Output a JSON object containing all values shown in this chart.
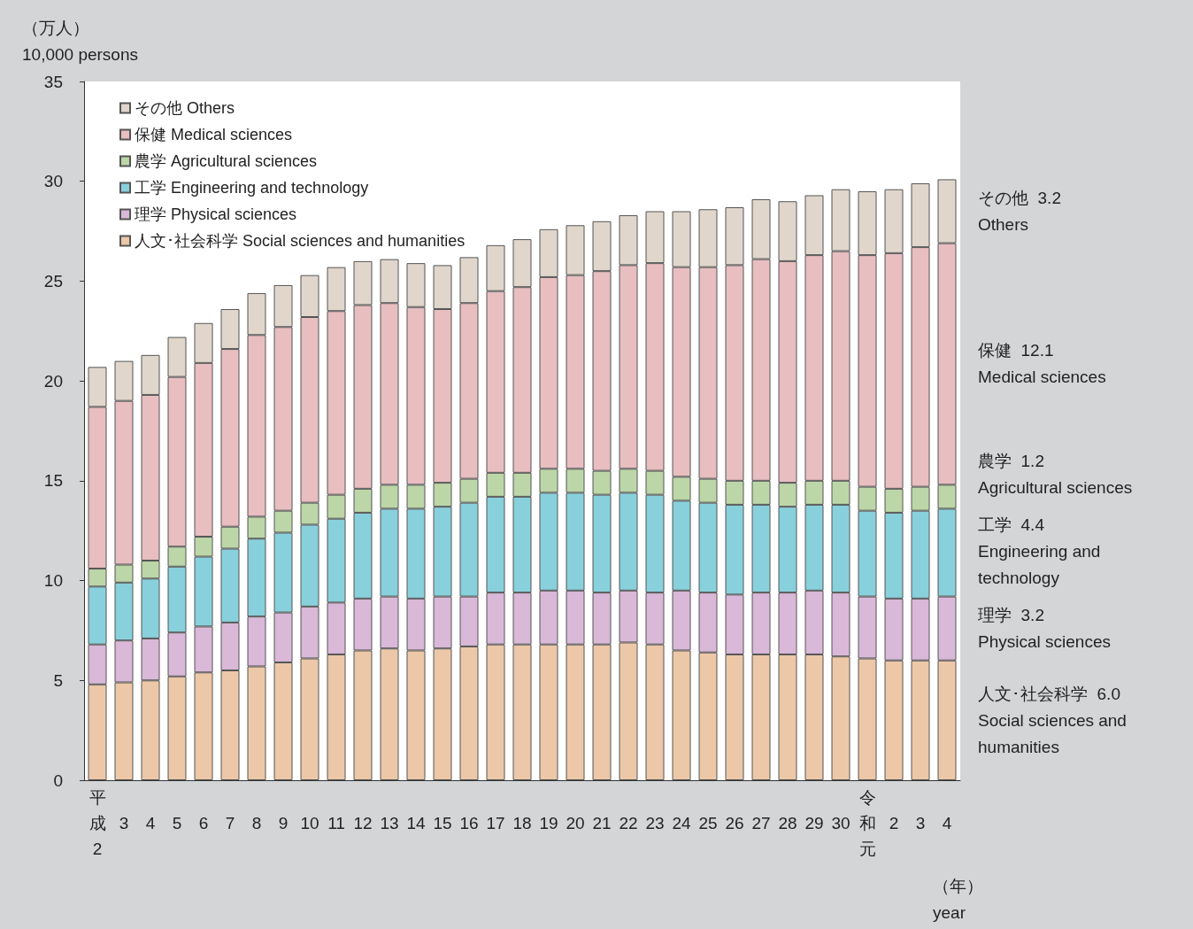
{
  "chart_data": {
    "type": "bar",
    "stacked": true,
    "ylabel": "（万人）\n10,000 persons",
    "xlabel": "（年）\nyear",
    "categories": [
      "平成2",
      "3",
      "4",
      "5",
      "6",
      "7",
      "8",
      "9",
      "10",
      "11",
      "12",
      "13",
      "14",
      "15",
      "16",
      "17",
      "18",
      "19",
      "20",
      "21",
      "22",
      "23",
      "24",
      "25",
      "26",
      "27",
      "28",
      "29",
      "30",
      "令和元",
      "2",
      "3",
      "4"
    ],
    "series": [
      {
        "name": "人文･社会科学 Social sciences and humanities",
        "color": "#ecc8a8",
        "values": [
          4.8,
          4.9,
          5.0,
          5.2,
          5.4,
          5.5,
          5.7,
          5.9,
          6.1,
          6.3,
          6.5,
          6.6,
          6.5,
          6.6,
          6.7,
          6.8,
          6.8,
          6.8,
          6.8,
          6.8,
          6.9,
          6.8,
          6.5,
          6.4,
          6.3,
          6.3,
          6.3,
          6.3,
          6.2,
          6.1,
          6.0,
          6.0,
          6.0
        ]
      },
      {
        "name": "理学 Physical sciences",
        "color": "#d9b8d8",
        "values": [
          2.0,
          2.1,
          2.1,
          2.2,
          2.3,
          2.4,
          2.5,
          2.5,
          2.6,
          2.6,
          2.6,
          2.6,
          2.6,
          2.6,
          2.5,
          2.6,
          2.6,
          2.7,
          2.7,
          2.6,
          2.6,
          2.6,
          3.0,
          3.0,
          3.0,
          3.1,
          3.1,
          3.2,
          3.2,
          3.1,
          3.1,
          3.1,
          3.2
        ]
      },
      {
        "name": "工学 Engineering and technology",
        "color": "#88d0dc",
        "values": [
          2.9,
          2.9,
          3.0,
          3.3,
          3.5,
          3.7,
          3.9,
          4.0,
          4.1,
          4.2,
          4.3,
          4.4,
          4.5,
          4.5,
          4.7,
          4.8,
          4.8,
          4.9,
          4.9,
          4.9,
          4.9,
          4.9,
          4.5,
          4.5,
          4.5,
          4.4,
          4.3,
          4.3,
          4.4,
          4.3,
          4.3,
          4.4,
          4.4
        ]
      },
      {
        "name": "農学 Agricultural sciences",
        "color": "#bcd6a8",
        "values": [
          0.9,
          0.9,
          0.9,
          1.0,
          1.0,
          1.1,
          1.1,
          1.1,
          1.1,
          1.2,
          1.2,
          1.2,
          1.2,
          1.2,
          1.2,
          1.2,
          1.2,
          1.2,
          1.2,
          1.2,
          1.2,
          1.2,
          1.2,
          1.2,
          1.2,
          1.2,
          1.2,
          1.2,
          1.2,
          1.2,
          1.2,
          1.2,
          1.2
        ]
      },
      {
        "name": "保健 Medical sciences",
        "color": "#e8bec0",
        "values": [
          8.1,
          8.2,
          8.3,
          8.5,
          8.7,
          8.9,
          9.1,
          9.2,
          9.3,
          9.2,
          9.2,
          9.1,
          8.9,
          8.7,
          8.8,
          9.1,
          9.3,
          9.6,
          9.7,
          10.0,
          10.2,
          10.4,
          10.5,
          10.6,
          10.8,
          11.1,
          11.1,
          11.3,
          11.5,
          11.6,
          11.8,
          12.0,
          12.1
        ]
      },
      {
        "name": "その他 Others",
        "color": "#e0d6cc",
        "values": [
          2.0,
          2.0,
          2.0,
          2.0,
          2.0,
          2.0,
          2.1,
          2.1,
          2.1,
          2.2,
          2.2,
          2.2,
          2.2,
          2.2,
          2.3,
          2.3,
          2.4,
          2.4,
          2.5,
          2.5,
          2.5,
          2.6,
          2.8,
          2.9,
          2.9,
          3.0,
          3.0,
          3.0,
          3.1,
          3.2,
          3.2,
          3.2,
          3.2
        ]
      }
    ],
    "ylim": [
      0,
      35
    ],
    "yticks": [
      0,
      5,
      10,
      15,
      20,
      25,
      30,
      35
    ],
    "legend": "top left",
    "annotations": [
      "その他  3.2\nOthers",
      "保健  12.1\nMedical sciences",
      "農学  1.2\nAgricultural sciences",
      "工学  4.4\nEngineering and technology",
      "理学  3.2\nPhysical sciences",
      "人文･社会科学  6.0\nSocial sciences and humanities"
    ]
  }
}
